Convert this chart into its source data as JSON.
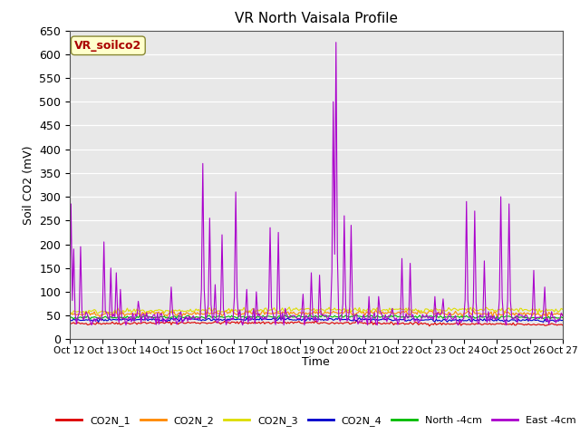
{
  "title": "VR North Vaisala Profile",
  "ylabel": "Soil CO2 (mV)",
  "xlabel": "Time",
  "annotation": "VR_soilco2",
  "ylim": [
    0,
    650
  ],
  "yticks": [
    0,
    50,
    100,
    150,
    200,
    250,
    300,
    350,
    400,
    450,
    500,
    550,
    600,
    650
  ],
  "xtick_labels": [
    "Oct 12",
    "Oct 13",
    "Oct 14",
    "Oct 15",
    "Oct 16",
    "Oct 17",
    "Oct 18",
    "Oct 19",
    "Oct 20",
    "Oct 21",
    "Oct 22",
    "Oct 23",
    "Oct 24",
    "Oct 25",
    "Oct 26",
    "Oct 27"
  ],
  "bg_color": "#e8e8e8",
  "series_colors": {
    "CO2N_1": "#dd0000",
    "CO2N_2": "#ff8800",
    "CO2N_3": "#dddd00",
    "CO2N_4": "#0000cc",
    "North_4cm": "#00bb00",
    "East_4cm": "#aa00cc"
  },
  "legend_labels": [
    "CO2N_1",
    "CO2N_2",
    "CO2N_3",
    "CO2N_4",
    "North -4cm",
    "East -4cm"
  ],
  "figsize": [
    6.4,
    4.8
  ],
  "dpi": 100
}
